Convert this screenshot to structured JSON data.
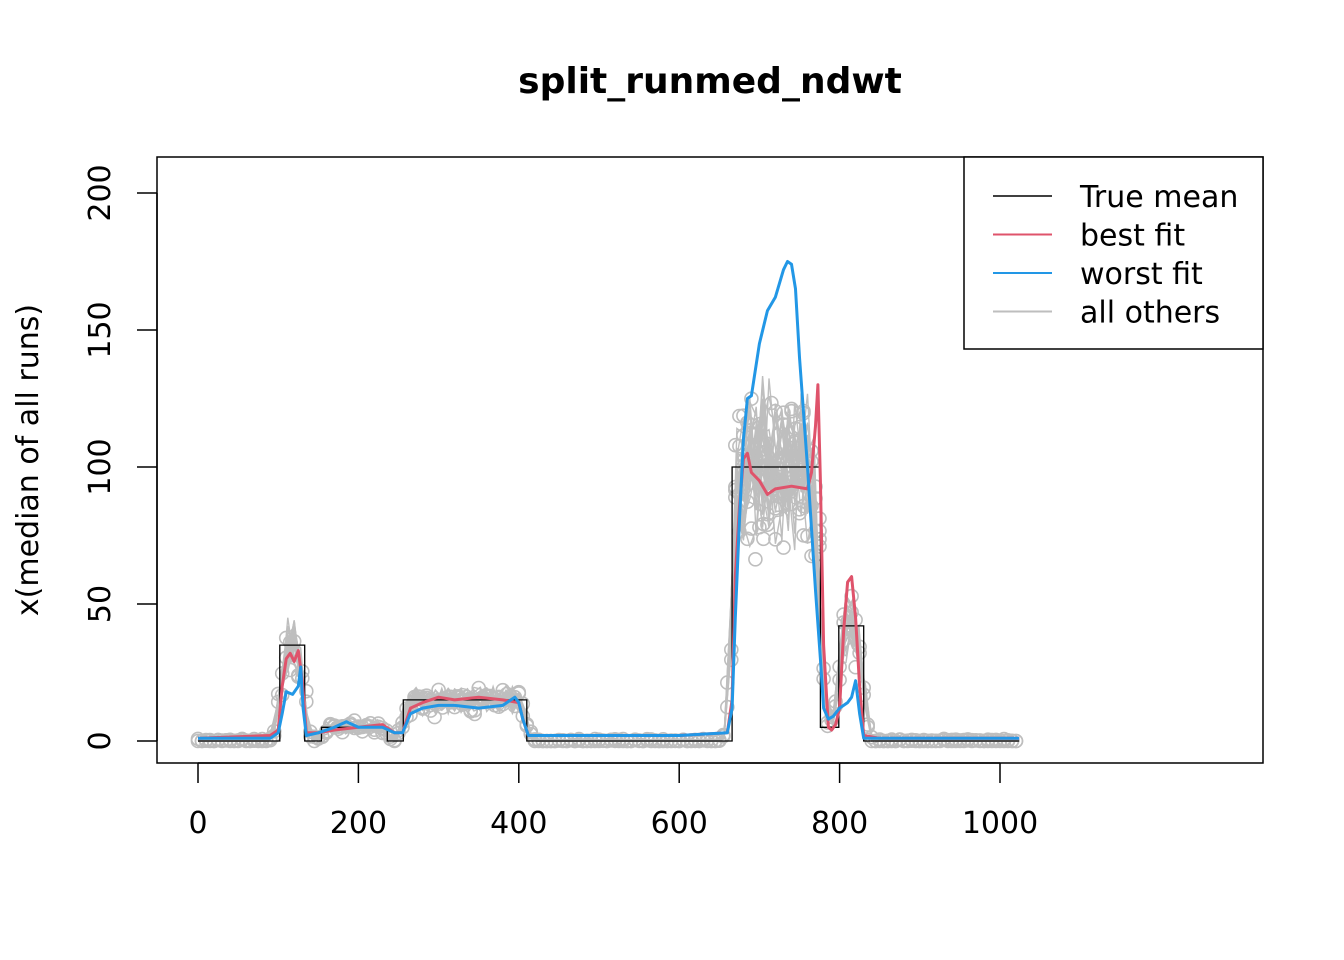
{
  "chart_data": {
    "type": "line",
    "title": "split_runmed_ndwt",
    "xlabel": "",
    "ylabel": "x(median of all runs)",
    "xlim": [
      -20,
      1045
    ],
    "ylim": [
      -8,
      214
    ],
    "xticks": [
      0,
      200,
      400,
      600,
      800,
      1000
    ],
    "yticks": [
      0,
      50,
      100,
      150,
      200
    ],
    "legend": {
      "position": "top-right",
      "entries": [
        {
          "label": "True mean",
          "color": "#000000"
        },
        {
          "label": "best fit",
          "color": "#DF536B"
        },
        {
          "label": "worst fit",
          "color": "#2297E6"
        },
        {
          "label": "all others",
          "color": "#BEBEBE"
        }
      ]
    },
    "true_mean": {
      "name": "True mean",
      "color": "#000000",
      "x": [
        0,
        102,
        102,
        133,
        133,
        154,
        154,
        236,
        236,
        256,
        256,
        410,
        410,
        666,
        666,
        776,
        776,
        799,
        799,
        830,
        830,
        1024
      ],
      "y": [
        0,
        0,
        35,
        35,
        0,
        0,
        5,
        5,
        0,
        0,
        15,
        15,
        0,
        0,
        100,
        100,
        5,
        5,
        42,
        42,
        0,
        0
      ]
    },
    "best_fit": {
      "name": "best fit",
      "color": "#DF536B",
      "x": [
        0,
        90,
        100,
        105,
        110,
        115,
        120,
        125,
        130,
        135,
        150,
        170,
        200,
        230,
        245,
        255,
        265,
        280,
        300,
        320,
        350,
        380,
        400,
        405,
        412,
        450,
        500,
        600,
        660,
        666,
        670,
        675,
        680,
        685,
        690,
        700,
        710,
        720,
        740,
        760,
        765,
        770,
        773,
        776,
        780,
        786,
        790,
        795,
        800,
        805,
        810,
        815,
        820,
        825,
        830,
        850,
        900,
        1024
      ],
      "y": [
        1,
        2,
        4,
        20,
        30,
        32,
        29,
        33,
        22,
        3,
        3,
        4,
        5,
        6,
        3,
        3,
        12,
        14,
        16,
        15,
        16,
        15,
        14,
        8,
        2,
        2,
        2,
        2,
        3,
        15,
        60,
        85,
        103,
        105,
        98,
        95,
        90,
        92,
        93,
        92,
        98,
        115,
        130,
        95,
        35,
        5,
        4,
        6,
        12,
        40,
        58,
        60,
        45,
        20,
        2,
        1,
        1,
        1
      ]
    },
    "worst_fit": {
      "name": "worst fit",
      "color": "#2297E6",
      "x": [
        0,
        90,
        100,
        105,
        110,
        118,
        125,
        128,
        131,
        135,
        150,
        170,
        185,
        200,
        230,
        245,
        255,
        265,
        280,
        300,
        320,
        350,
        380,
        395,
        400,
        405,
        412,
        450,
        500,
        600,
        660,
        666,
        670,
        675,
        680,
        685,
        690,
        700,
        710,
        720,
        730,
        735,
        740,
        745,
        750,
        760,
        770,
        776,
        780,
        786,
        792,
        800,
        805,
        810,
        815,
        820,
        825,
        830,
        850,
        900,
        1024
      ],
      "y": [
        1,
        1,
        3,
        10,
        18,
        17,
        20,
        27,
        12,
        2,
        3,
        5,
        7,
        5,
        5,
        3,
        3,
        10,
        12,
        13,
        13,
        12,
        13,
        16,
        14,
        8,
        2,
        2,
        2,
        2,
        3,
        12,
        45,
        80,
        110,
        125,
        126,
        145,
        157,
        162,
        172,
        175,
        174,
        165,
        140,
        100,
        55,
        30,
        12,
        8,
        9,
        12,
        13,
        14,
        16,
        22,
        10,
        1,
        1,
        1,
        1
      ]
    },
    "colors": {
      "others": "#BEBEBE",
      "axis": "#000000"
    }
  }
}
